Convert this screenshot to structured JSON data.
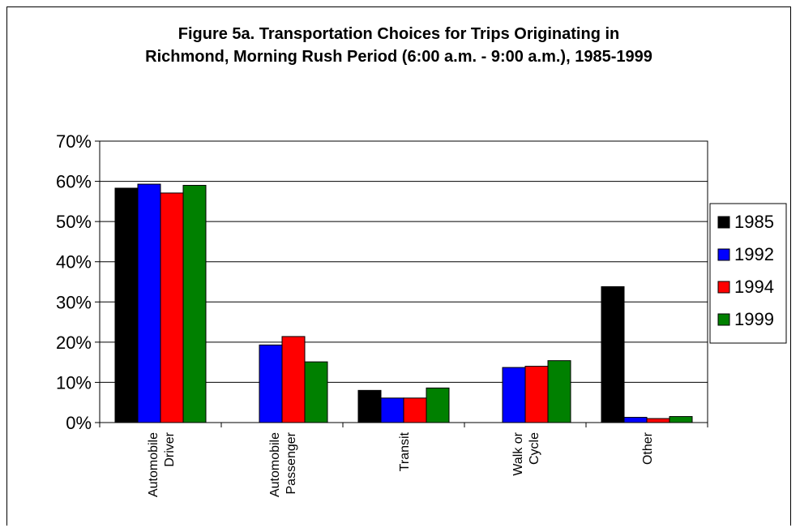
{
  "chart_data": {
    "type": "bar",
    "title_lines": [
      "Figure 5a. Transportation Choices for Trips Originating in",
      "Richmond, Morning Rush Period (6:00 a.m. - 9:00 a.m.), 1985-1999"
    ],
    "categories": [
      [
        "Automobile",
        "Driver"
      ],
      [
        "Automobile",
        "Passenger"
      ],
      [
        "Transit"
      ],
      [
        "Walk or",
        "Cycle"
      ],
      [
        "Other"
      ]
    ],
    "series": [
      {
        "name": "1985",
        "color": "#000000",
        "values": [
          58.3,
          0,
          8.0,
          0,
          33.8
        ]
      },
      {
        "name": "1992",
        "color": "#0000ff",
        "values": [
          59.3,
          19.3,
          6.1,
          13.7,
          1.3
        ]
      },
      {
        "name": "1994",
        "color": "#ff0000",
        "values": [
          57.1,
          21.4,
          6.1,
          14.0,
          1.0
        ]
      },
      {
        "name": "1999",
        "color": "#008000",
        "values": [
          59.0,
          15.1,
          8.6,
          15.4,
          1.5
        ]
      }
    ],
    "y_ticks": [
      "0%",
      "10%",
      "20%",
      "30%",
      "40%",
      "50%",
      "60%",
      "70%"
    ],
    "ylim": [
      0,
      70
    ],
    "grid": true,
    "legend_position": "right"
  }
}
